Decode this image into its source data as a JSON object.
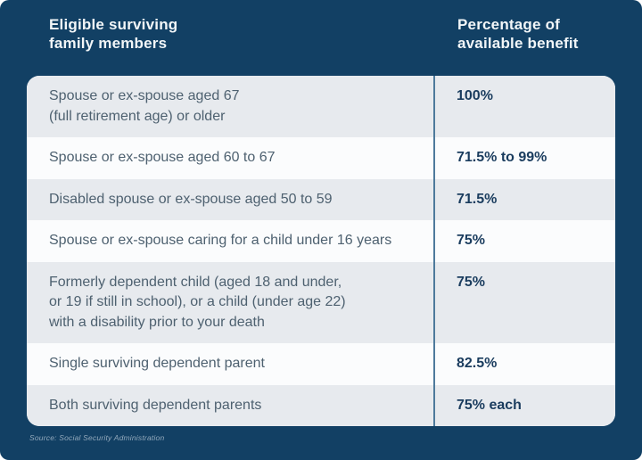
{
  "header": {
    "col1": "Eligible surviving\nfamily members",
    "col2": "Percentage of\navailable benefit"
  },
  "table": {
    "rows": [
      {
        "member": "Spouse or ex-spouse aged 67\n(full retirement age) or older",
        "percentage": "100%"
      },
      {
        "member": "Spouse or ex-spouse aged 60 to 67",
        "percentage": "71.5% to 99%"
      },
      {
        "member": "Disabled spouse or ex-spouse aged 50 to 59",
        "percentage": "71.5%"
      },
      {
        "member": "Spouse or ex-spouse caring for a child under 16 years",
        "percentage": "75%"
      },
      {
        "member": "Formerly dependent child (aged 18 and under,\nor 19 if still in school), or a child (under age 22)\nwith a disability prior to your death",
        "percentage": "75%"
      },
      {
        "member": "Single surviving dependent parent",
        "percentage": "82.5%"
      },
      {
        "member": "Both surviving dependent parents",
        "percentage": "75% each"
      }
    ]
  },
  "footer": {
    "source": "Source: Social Security Administration"
  },
  "colors": {
    "panel_navy": "#124064",
    "row_gray": "#E7EAEE",
    "row_light": "#FBFCFD",
    "divider_blue": "#4E7A9C",
    "member_text": "#4E6170",
    "percent_text": "#1A3C5E",
    "header_text": "#F2F6F8",
    "source_text": "#93A9BC"
  },
  "chart_data": {
    "type": "table",
    "title": "",
    "columns": [
      "Eligible surviving family members",
      "Percentage of available benefit"
    ],
    "rows": [
      [
        "Spouse or ex-spouse aged 67 (full retirement age) or older",
        "100%"
      ],
      [
        "Spouse or ex-spouse aged 60 to 67",
        "71.5% to 99%"
      ],
      [
        "Disabled spouse or ex-spouse aged 50 to 59",
        "71.5%"
      ],
      [
        "Spouse or ex-spouse caring for a child under 16 years",
        "75%"
      ],
      [
        "Formerly dependent child (aged 18 and under, or 19 if still in school), or a child (under age 22) with a disability prior to your death",
        "75%"
      ],
      [
        "Single surviving dependent parent",
        "82.5%"
      ],
      [
        "Both surviving dependent parents",
        "75% each"
      ]
    ],
    "source": "Source: Social Security Administration",
    "layout": {
      "grid": false,
      "alternating_row_shading": true,
      "column_divider": true
    }
  }
}
